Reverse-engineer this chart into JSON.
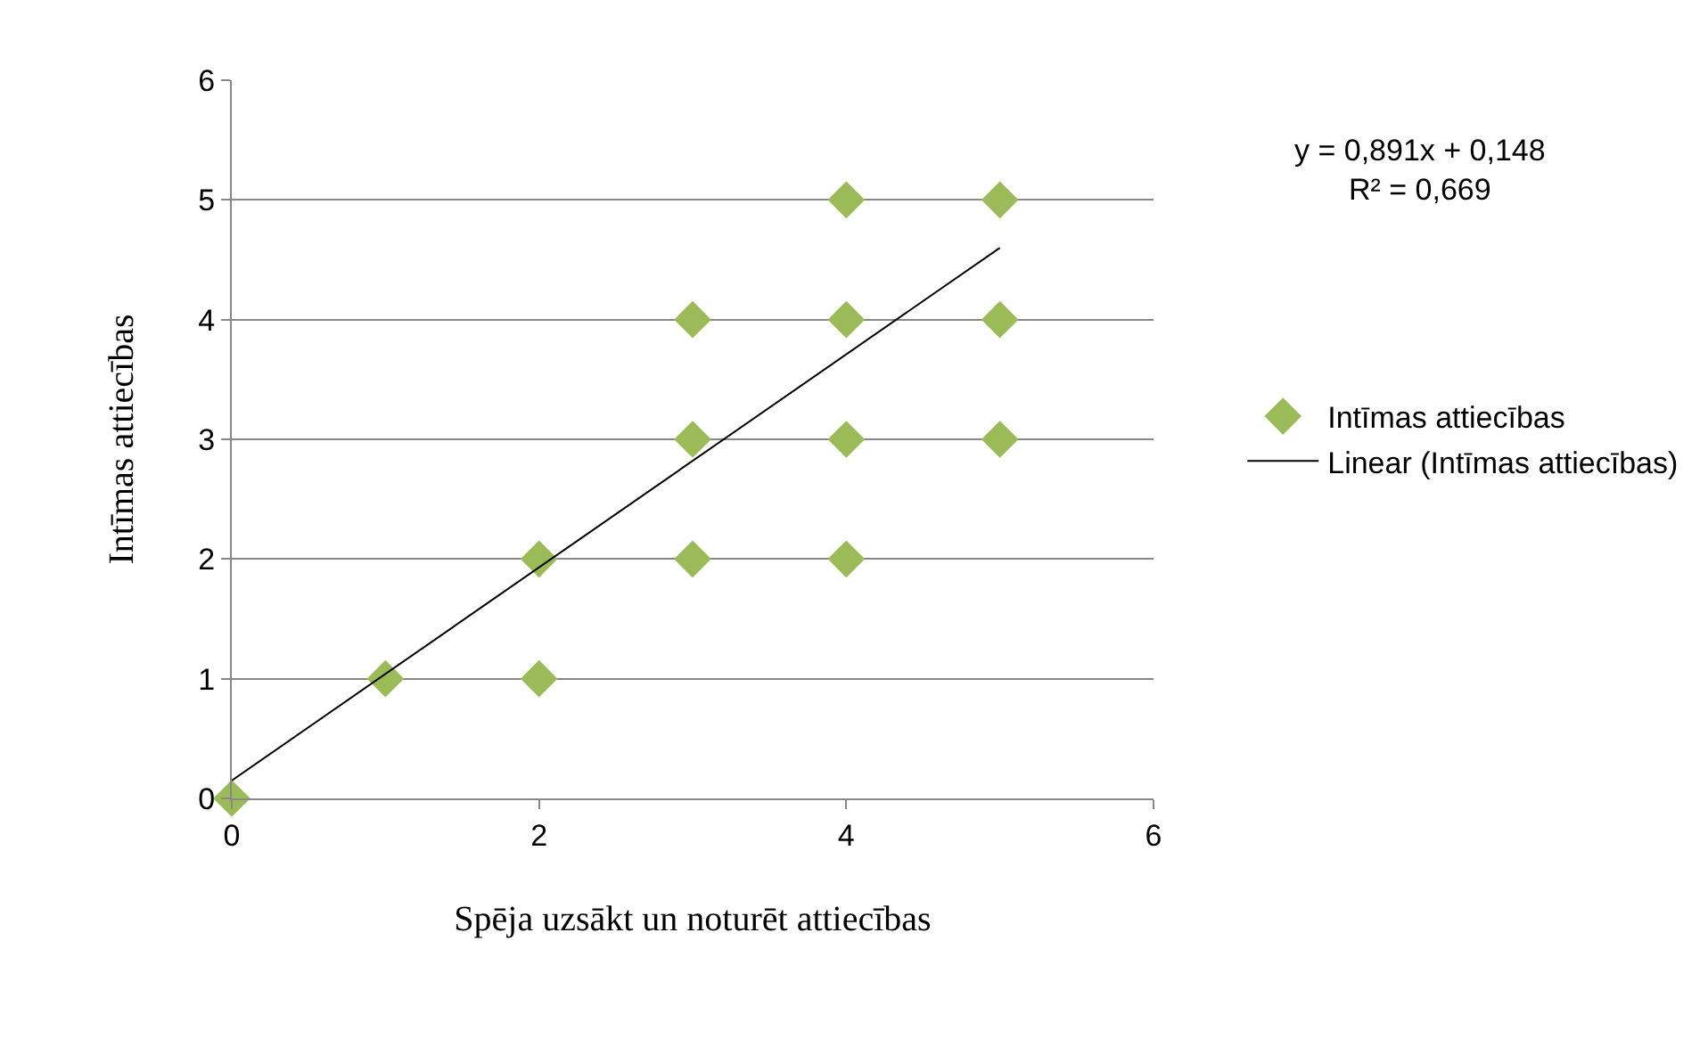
{
  "chart_data": {
    "type": "scatter",
    "xlabel": "Spēja uzsākt un noturēt attiecības",
    "ylabel": "Intīmas attiecības",
    "x": [
      0,
      1,
      2,
      2,
      3,
      3,
      3,
      4,
      4,
      4,
      4,
      5,
      5,
      5
    ],
    "series": [
      {
        "name": "Intīmas attiecības",
        "color": "#9bbb59",
        "marker": "diamond",
        "values": [
          0,
          1,
          2,
          1,
          4,
          3,
          2,
          5,
          4,
          3,
          2,
          5,
          4,
          3
        ]
      },
      {
        "name": "Linear (Intīmas attiecības)",
        "color": "#000000",
        "type": "line",
        "x": [
          0,
          5
        ],
        "values": [
          0.15,
          4.6
        ]
      }
    ],
    "xlim": [
      0,
      6
    ],
    "ylim": [
      0,
      6
    ],
    "xticks": [
      0,
      2,
      4,
      6
    ],
    "yticks": [
      0,
      1,
      2,
      3,
      4,
      5,
      6
    ],
    "grid": "y",
    "legend": "right",
    "annotations": [
      "y = 0,891x + 0,148\nR² = 0,669"
    ]
  }
}
